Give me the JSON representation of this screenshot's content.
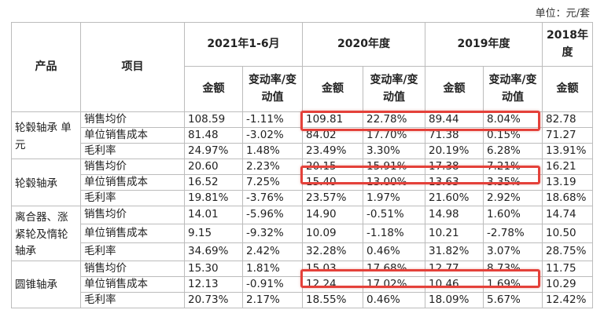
{
  "unit_label": "单位：元/套",
  "headers": {
    "product": "产品",
    "item": "项目",
    "periods": [
      "2021年1-6月",
      "2020年度",
      "2019年度",
      "2018年度"
    ],
    "amount": "金额",
    "change": "变动率/变动值"
  },
  "groups": [
    {
      "product": "轮毂轴承 单元",
      "rows": [
        {
          "item": "销售均价",
          "v": [
            "108.59",
            "-1.11%",
            "109.81",
            "22.78%",
            "89.44",
            "8.04%",
            "82.78"
          ]
        },
        {
          "item": "单位销售成本",
          "v": [
            "81.48",
            "-3.02%",
            "84.02",
            "17.70%",
            "71.38",
            "0.15%",
            "71.27"
          ]
        },
        {
          "item": "毛利率",
          "v": [
            "24.97%",
            "1.48%",
            "23.49%",
            "3.30%",
            "20.19%",
            "6.28%",
            "13.91%"
          ]
        }
      ]
    },
    {
      "product": "轮毂轴承",
      "rows": [
        {
          "item": "销售均价",
          "v": [
            "20.60",
            "2.23%",
            "20.15",
            "15.91%",
            "17.38",
            "7.21%",
            "16.21"
          ]
        },
        {
          "item": "单位销售成本",
          "v": [
            "16.52",
            "7.25%",
            "15.40",
            "13.00%",
            "13.63",
            "3.35%",
            "13.19"
          ]
        },
        {
          "item": "毛利率",
          "v": [
            "19.81%",
            "-3.76%",
            "23.57%",
            "1.97%",
            "21.60%",
            "2.92%",
            "18.68%"
          ]
        }
      ]
    },
    {
      "product": "离合器、涨紧轮及惰轮轴承",
      "rows": [
        {
          "item": "销售均价",
          "v": [
            "14.01",
            "-5.96%",
            "14.90",
            "-0.51%",
            "14.98",
            "1.60%",
            "14.74"
          ]
        },
        {
          "item": "单位销售成本",
          "v": [
            "9.15",
            "-9.32%",
            "10.09",
            "-1.18%",
            "10.21",
            "-2.78%",
            "10.50"
          ]
        },
        {
          "item": "毛利率",
          "v": [
            "34.69%",
            "2.42%",
            "32.28%",
            "0.46%",
            "31.82%",
            "3.07%",
            "28.75%"
          ]
        }
      ]
    },
    {
      "product": "圆锥轴承",
      "rows": [
        {
          "item": "销售均价",
          "v": [
            "15.30",
            "1.81%",
            "15.03",
            "17.68%",
            "12.77",
            "8.73%",
            "11.75"
          ]
        },
        {
          "item": "单位销售成本",
          "v": [
            "12.13",
            "-0.91%",
            "12.24",
            "17.02%",
            "10.46",
            "1.69%",
            "10.29"
          ]
        },
        {
          "item": "毛利率",
          "v": [
            "20.73%",
            "2.17%",
            "18.55%",
            "0.46%",
            "18.09%",
            "5.67%",
            "12.42%"
          ]
        }
      ]
    }
  ],
  "highlight_color": "#e4413a"
}
